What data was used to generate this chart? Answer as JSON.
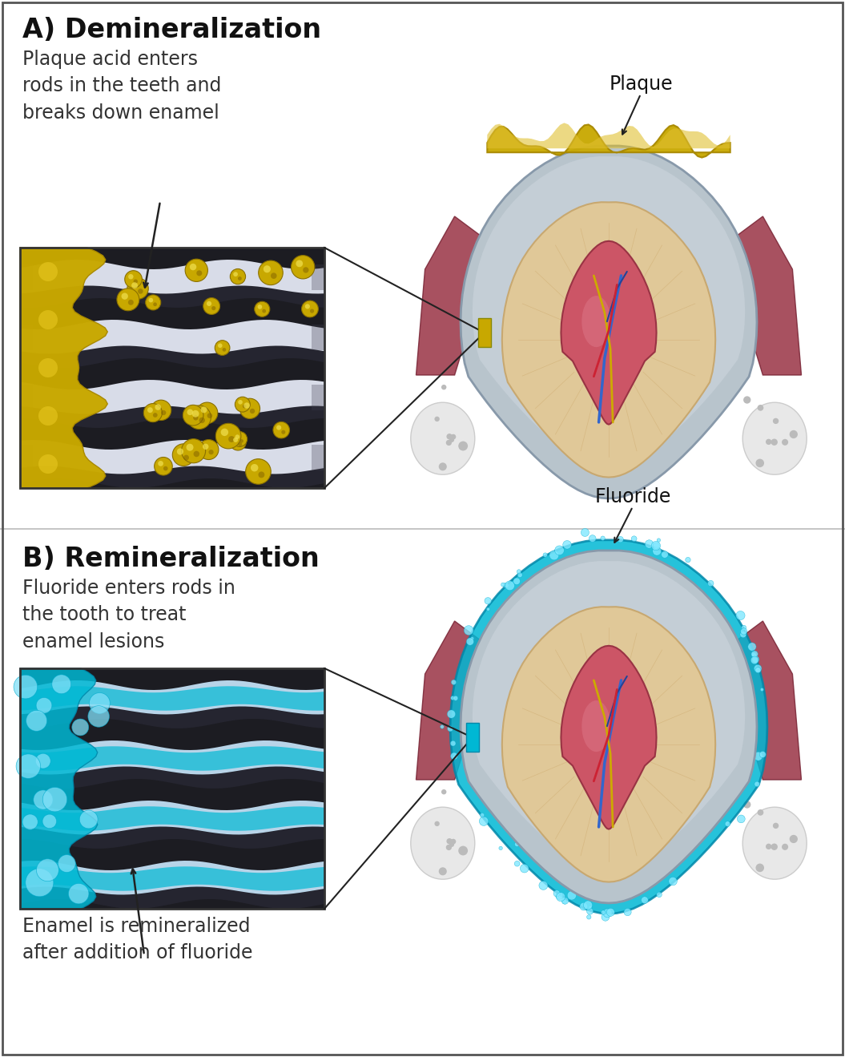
{
  "bg_color": "#ffffff",
  "title_A": "A) Demineralization",
  "subtitle_A": "Plaque acid enters\nrods in the teeth and\nbreaks down enamel",
  "title_B": "B) Remineralization",
  "subtitle_B": "Fluoride enters rods in\nthe tooth to treat\nenamel lesions",
  "caption_B": "Enamel is remineralized\nafter addition of fluoride",
  "label_plaque": "Plaque",
  "label_fluoride": "Fluoride",
  "title_fontsize": 24,
  "subtitle_fontsize": 17,
  "label_fontsize": 17,
  "plaque_gold": "#c8a800",
  "plaque_gold2": "#e8c820",
  "fluoride_cyan": "#00b8d4",
  "fluoride_cyan2": "#40d8f0",
  "enamel_gray": "#b8c4cc",
  "dentin_beige": "#e0c898",
  "pulp_pink": "#cc5566",
  "pulp_dark": "#aa3344",
  "nerve_blue": "#3366cc",
  "nerve_yellow": "#ccaa00",
  "nerve_dark": "#223388",
  "gum_dark": "#993344",
  "bone_white": "#e8e8e8",
  "rod_dark": "#303038",
  "rod_light": "#d8dce8",
  "acid_yellow": "#c8a000",
  "fluor_blue": "#00aacc"
}
